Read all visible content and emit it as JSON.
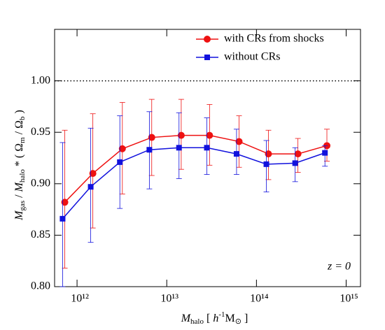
{
  "chart_data": {
    "type": "line",
    "xlabel": [
      {
        "text": "M",
        "style": "italic"
      },
      {
        "text": "halo",
        "style": "sub"
      },
      {
        "text": "  [ ",
        "style": "normal"
      },
      {
        "text": "h",
        "style": "italic"
      },
      {
        "text": "-1",
        "style": "sup"
      },
      {
        "text": "M",
        "style": "normal"
      },
      {
        "text": "⊙",
        "style": "sub"
      },
      {
        "text": " ]",
        "style": "normal"
      }
    ],
    "ylabel": [
      {
        "text": "M",
        "style": "italic"
      },
      {
        "text": "gas",
        "style": "sub"
      },
      {
        "text": " / ",
        "style": "normal"
      },
      {
        "text": "M",
        "style": "italic"
      },
      {
        "text": "halo",
        "style": "sub"
      },
      {
        "text": " * ( Ω",
        "style": "normal"
      },
      {
        "text": "m",
        "style": "sub"
      },
      {
        "text": " / Ω",
        "style": "normal"
      },
      {
        "text": "b",
        "style": "sub"
      },
      {
        "text": " )",
        "style": "normal"
      }
    ],
    "annotation": "z = 0",
    "hline": 1.0,
    "xscale": "log",
    "xlim": [
      562000000000.0,
      1445000000000000.0
    ],
    "xticks": [
      {
        "value": 1000000000000.0,
        "label": "10¹²"
      },
      {
        "value": 10000000000000.0,
        "label": "10¹³"
      },
      {
        "value": 100000000000000.0,
        "label": "10¹⁴"
      },
      {
        "value": 1000000000000000.0,
        "label": "10¹⁵"
      }
    ],
    "ylim": [
      0.8,
      1.05
    ],
    "yticks": [
      {
        "value": 0.8,
        "label": "0.80"
      },
      {
        "value": 0.85,
        "label": "0.85"
      },
      {
        "value": 0.9,
        "label": "0.90"
      },
      {
        "value": 0.95,
        "label": "0.95"
      },
      {
        "value": 1.0,
        "label": "1.00"
      }
    ],
    "legend": "upper right",
    "series": [
      {
        "name": "with CRs from shocks",
        "color": "#ee1111",
        "marker": "circle",
        "x": [
          730000000000.0,
          1500000000000.0,
          3200000000000.0,
          6800000000000.0,
          14500000000000.0,
          30000000000000.0,
          64000000000000.0,
          136000000000000.0,
          290000000000000.0,
          610000000000000.0
        ],
        "values": [
          0.882,
          0.91,
          0.934,
          0.945,
          0.947,
          0.947,
          0.941,
          0.929,
          0.929,
          0.937
        ],
        "error_minus": [
          0.064,
          0.053,
          0.044,
          0.037,
          0.033,
          0.029,
          0.025,
          0.025,
          0.018,
          0.015
        ],
        "error_plus": [
          0.07,
          0.058,
          0.045,
          0.037,
          0.035,
          0.03,
          0.025,
          0.023,
          0.015,
          0.016
        ]
      },
      {
        "name": "without CRs",
        "color": "#1111dd",
        "marker": "square",
        "x": [
          690000000000.0,
          1420000000000.0,
          3000000000000.0,
          6400000000000.0,
          13700000000000.0,
          28000000000000.0,
          60000000000000.0,
          129000000000000.0,
          270000000000000.0,
          580000000000000.0
        ],
        "values": [
          0.866,
          0.897,
          0.921,
          0.933,
          0.935,
          0.935,
          0.929,
          0.919,
          0.92,
          0.93
        ],
        "error_minus": [
          0.066,
          0.054,
          0.045,
          0.038,
          0.03,
          0.026,
          0.02,
          0.027,
          0.018,
          0.013
        ],
        "error_plus": [
          0.074,
          0.057,
          0.045,
          0.037,
          0.034,
          0.029,
          0.024,
          0.023,
          0.015,
          0.007
        ]
      }
    ]
  }
}
